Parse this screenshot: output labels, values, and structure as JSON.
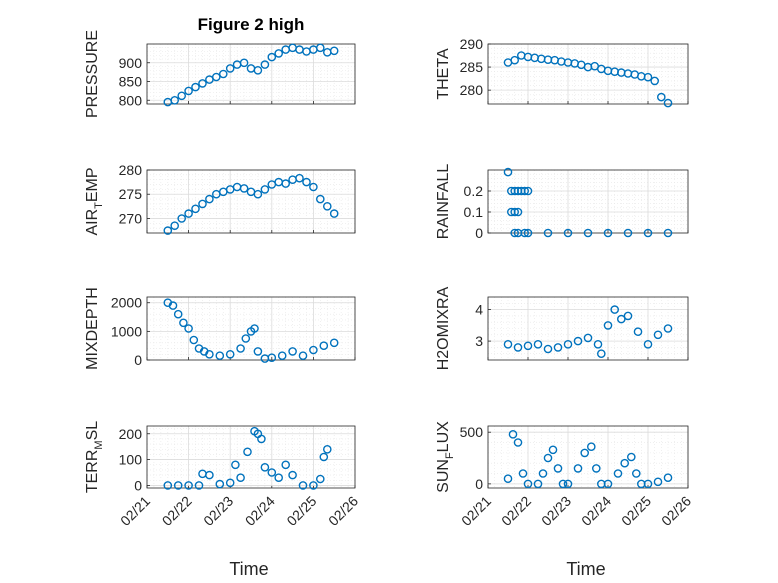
{
  "figure": {
    "title": "Figure 2 high",
    "marker_color": "#0072BD"
  },
  "chart_data": [
    {
      "id": "pressure",
      "type": "scatter",
      "ylabel": "PRESSURE",
      "xlabel": "",
      "ylim": [
        790,
        950
      ],
      "yticks": [
        800,
        850,
        900
      ],
      "ytick_labels": [
        "800",
        "850",
        "900"
      ],
      "x": [
        "02/21 12:00",
        "02/21 16:00",
        "02/21 20:00",
        "02/22 00:00",
        "02/22 04:00",
        "02/22 08:00",
        "02/22 12:00",
        "02/22 16:00",
        "02/22 20:00",
        "02/23 00:00",
        "02/23 04:00",
        "02/23 08:00",
        "02/23 12:00",
        "02/23 16:00",
        "02/23 20:00",
        "02/24 00:00",
        "02/24 04:00",
        "02/24 08:00",
        "02/24 12:00",
        "02/24 16:00",
        "02/24 20:00",
        "02/25 00:00",
        "02/25 04:00",
        "02/25 08:00",
        "02/25 12:00"
      ],
      "y": [
        795,
        800,
        812,
        825,
        835,
        845,
        855,
        862,
        870,
        885,
        895,
        900,
        885,
        880,
        895,
        915,
        925,
        935,
        940,
        935,
        930,
        935,
        940,
        928,
        932
      ]
    },
    {
      "id": "theta",
      "type": "scatter",
      "ylabel": "THETA",
      "xlabel": "",
      "ylim": [
        277,
        290
      ],
      "yticks": [
        280,
        285,
        290
      ],
      "ytick_labels": [
        "280",
        "285",
        "290"
      ],
      "x": [
        "02/21 12:00",
        "02/21 16:00",
        "02/21 20:00",
        "02/22 00:00",
        "02/22 04:00",
        "02/22 08:00",
        "02/22 12:00",
        "02/22 16:00",
        "02/22 20:00",
        "02/23 00:00",
        "02/23 04:00",
        "02/23 08:00",
        "02/23 12:00",
        "02/23 16:00",
        "02/23 20:00",
        "02/24 00:00",
        "02/24 04:00",
        "02/24 08:00",
        "02/24 12:00",
        "02/24 16:00",
        "02/24 20:00",
        "02/25 00:00",
        "02/25 04:00",
        "02/25 08:00",
        "02/25 12:00"
      ],
      "y": [
        286,
        286.5,
        287.5,
        287.2,
        287,
        286.8,
        286.6,
        286.5,
        286.2,
        286,
        285.8,
        285.5,
        285,
        285.2,
        284.6,
        284.2,
        284,
        283.8,
        283.6,
        283.4,
        283,
        282.8,
        282,
        278.5,
        277.2
      ]
    },
    {
      "id": "air_temp",
      "type": "scatter",
      "ylabel": "AIR_TEMP",
      "ylabel_main": "AIR",
      "ylabel_sub": "T",
      "ylabel_rest": "EMP",
      "xlabel": "",
      "ylim": [
        267,
        280
      ],
      "yticks": [
        270,
        275,
        280
      ],
      "ytick_labels": [
        "270",
        "275",
        "280"
      ],
      "x": [
        "02/21 12:00",
        "02/21 16:00",
        "02/21 20:00",
        "02/22 00:00",
        "02/22 04:00",
        "02/22 08:00",
        "02/22 12:00",
        "02/22 16:00",
        "02/22 20:00",
        "02/23 00:00",
        "02/23 04:00",
        "02/23 08:00",
        "02/23 12:00",
        "02/23 16:00",
        "02/23 20:00",
        "02/24 00:00",
        "02/24 04:00",
        "02/24 08:00",
        "02/24 12:00",
        "02/24 16:00",
        "02/24 20:00",
        "02/25 00:00",
        "02/25 04:00",
        "02/25 08:00",
        "02/25 12:00"
      ],
      "y": [
        267.5,
        268.5,
        270,
        271,
        272,
        273,
        274,
        275,
        275.5,
        276,
        276.5,
        276.2,
        275.5,
        275,
        276,
        277,
        277.5,
        277.2,
        278,
        278.3,
        277.5,
        276.5,
        274,
        272.5,
        271
      ]
    },
    {
      "id": "rainfall",
      "type": "scatter",
      "ylabel": "RAINFALL",
      "xlabel": "",
      "ylim": [
        0,
        0.3
      ],
      "yticks": [
        0,
        0.1,
        0.2
      ],
      "ytick_labels": [
        "0",
        "0.1",
        "0.2"
      ],
      "x": [
        "02/21 12:00",
        "02/21 14:00",
        "02/21 16:00",
        "02/21 18:00",
        "02/21 20:00",
        "02/21 22:00",
        "02/22 00:00",
        "02/21 14:00",
        "02/21 16:00",
        "02/21 18:00",
        "02/21 22:00",
        "02/21 16:00",
        "02/21 18:00",
        "02/22 00:00",
        "02/22 12:00",
        "02/23 00:00",
        "02/23 12:00",
        "02/24 00:00",
        "02/24 12:00",
        "02/25 00:00",
        "02/25 12:00"
      ],
      "y": [
        0.29,
        0.2,
        0.2,
        0.2,
        0.2,
        0.2,
        0.2,
        0.1,
        0.1,
        0.1,
        0,
        0,
        0,
        0,
        0,
        0,
        0,
        0,
        0,
        0,
        0
      ]
    },
    {
      "id": "mixdepth",
      "type": "scatter",
      "ylabel": "MIXDEPTH",
      "xlabel": "",
      "ylim": [
        0,
        2200
      ],
      "yticks": [
        0,
        1000,
        2000
      ],
      "ytick_labels": [
        "0",
        "1000",
        "2000"
      ],
      "x": [
        "02/21 12:00",
        "02/21 15:00",
        "02/21 18:00",
        "02/21 21:00",
        "02/22 00:00",
        "02/22 03:00",
        "02/22 06:00",
        "02/22 09:00",
        "02/22 12:00",
        "02/22 18:00",
        "02/23 00:00",
        "02/23 06:00",
        "02/23 09:00",
        "02/23 12:00",
        "02/23 14:00",
        "02/23 16:00",
        "02/23 20:00",
        "02/24 00:00",
        "02/24 06:00",
        "02/24 12:00",
        "02/24 18:00",
        "02/25 00:00",
        "02/25 06:00",
        "02/25 12:00"
      ],
      "y": [
        2000,
        1900,
        1600,
        1300,
        1100,
        700,
        400,
        300,
        200,
        150,
        200,
        400,
        750,
        1000,
        1100,
        300,
        50,
        80,
        150,
        300,
        150,
        350,
        500,
        600
      ]
    },
    {
      "id": "h2omixra",
      "type": "scatter",
      "ylabel": "H2OMIXRA",
      "xlabel": "",
      "ylim": [
        2.4,
        4.4
      ],
      "yticks": [
        3,
        4
      ],
      "ytick_labels": [
        "3",
        "4"
      ],
      "x": [
        "02/21 12:00",
        "02/21 18:00",
        "02/22 00:00",
        "02/22 06:00",
        "02/22 12:00",
        "02/22 18:00",
        "02/23 00:00",
        "02/23 06:00",
        "02/23 12:00",
        "02/23 18:00",
        "02/23 20:00",
        "02/24 00:00",
        "02/24 04:00",
        "02/24 08:00",
        "02/24 12:00",
        "02/24 18:00",
        "02/25 00:00",
        "02/25 06:00",
        "02/25 12:00"
      ],
      "y": [
        2.9,
        2.8,
        2.85,
        2.9,
        2.75,
        2.8,
        2.9,
        3.0,
        3.1,
        2.9,
        2.6,
        3.5,
        4.0,
        3.7,
        3.8,
        3.3,
        2.9,
        3.2,
        3.4
      ]
    },
    {
      "id": "terr_msl",
      "type": "scatter",
      "ylabel": "TERR_MSL",
      "ylabel_main": "TERR",
      "ylabel_sub": "M",
      "ylabel_rest": "SL",
      "xlabel": "Time",
      "ylim": [
        -10,
        230
      ],
      "yticks": [
        0,
        100,
        200
      ],
      "ytick_labels": [
        "0",
        "100",
        "200"
      ],
      "x": [
        "02/21 12:00",
        "02/21 18:00",
        "02/22 00:00",
        "02/22 06:00",
        "02/22 08:00",
        "02/22 12:00",
        "02/22 18:00",
        "02/23 00:00",
        "02/23 03:00",
        "02/23 06:00",
        "02/23 10:00",
        "02/23 14:00",
        "02/23 16:00",
        "02/23 18:00",
        "02/23 20:00",
        "02/24 00:00",
        "02/24 04:00",
        "02/24 08:00",
        "02/24 12:00",
        "02/24 18:00",
        "02/25 00:00",
        "02/25 04:00",
        "02/25 06:00",
        "02/25 08:00"
      ],
      "y": [
        0,
        0,
        0,
        0,
        45,
        40,
        5,
        10,
        80,
        30,
        130,
        210,
        200,
        180,
        70,
        50,
        30,
        80,
        40,
        0,
        0,
        25,
        110,
        140
      ]
    },
    {
      "id": "sun_flux",
      "type": "scatter",
      "ylabel": "SUN_FLUX",
      "ylabel_main": "SUN",
      "ylabel_sub": "F",
      "ylabel_rest": "LUX",
      "xlabel": "Time",
      "ylim": [
        -40,
        560
      ],
      "yticks": [
        0,
        500
      ],
      "ytick_labels": [
        "0",
        "500"
      ],
      "x": [
        "02/21 12:00",
        "02/21 15:00",
        "02/21 18:00",
        "02/21 21:00",
        "02/22 00:00",
        "02/22 06:00",
        "02/22 09:00",
        "02/22 12:00",
        "02/22 15:00",
        "02/22 18:00",
        "02/22 21:00",
        "02/23 00:00",
        "02/23 06:00",
        "02/23 10:00",
        "02/23 14:00",
        "02/23 17:00",
        "02/23 20:00",
        "02/24 00:00",
        "02/24 06:00",
        "02/24 10:00",
        "02/24 14:00",
        "02/24 17:00",
        "02/24 20:00",
        "02/25 00:00",
        "02/25 06:00",
        "02/25 12:00"
      ],
      "y": [
        50,
        480,
        400,
        100,
        0,
        0,
        100,
        250,
        330,
        150,
        0,
        0,
        150,
        300,
        360,
        150,
        0,
        0,
        100,
        200,
        260,
        100,
        0,
        0,
        20,
        60
      ]
    }
  ],
  "shared_x": {
    "xlim": [
      "02/21",
      "02/26"
    ],
    "xtick_labels": [
      "02/21",
      "02/22",
      "02/23",
      "02/24",
      "02/25",
      "02/26"
    ]
  }
}
